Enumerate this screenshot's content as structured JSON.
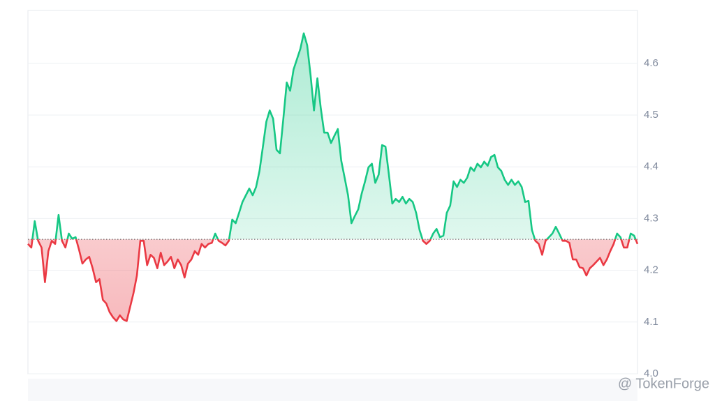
{
  "chart_data": {
    "type": "line",
    "watermark": "@ TokenForge",
    "baseline": 4.26,
    "up_color": "#16c784",
    "down_color": "#ea3943",
    "ylim": [
      4.0,
      4.7
    ],
    "yticks": [
      {
        "value": 4.0,
        "label": "4.0"
      },
      4.1,
      4.2,
      4.3,
      4.4,
      4.5,
      4.6
    ],
    "grid": true,
    "values": [
      4.251,
      4.244,
      4.295,
      4.257,
      4.244,
      4.177,
      4.237,
      4.257,
      4.251,
      4.307,
      4.257,
      4.244,
      4.271,
      4.261,
      4.264,
      4.24,
      4.213,
      4.221,
      4.226,
      4.204,
      4.177,
      4.183,
      4.143,
      4.136,
      4.119,
      4.109,
      4.102,
      4.113,
      4.105,
      4.102,
      4.129,
      4.156,
      4.19,
      4.257,
      4.257,
      4.21,
      4.23,
      4.224,
      4.204,
      4.234,
      4.21,
      4.217,
      4.226,
      4.204,
      4.221,
      4.21,
      4.186,
      4.213,
      4.221,
      4.237,
      4.23,
      4.251,
      4.244,
      4.251,
      4.253,
      4.271,
      4.257,
      4.253,
      4.248,
      4.257,
      4.298,
      4.291,
      4.311,
      4.332,
      4.345,
      4.358,
      4.345,
      4.361,
      4.392,
      4.439,
      4.487,
      4.509,
      4.493,
      4.433,
      4.426,
      4.493,
      4.563,
      4.547,
      4.588,
      4.608,
      4.628,
      4.658,
      4.635,
      4.577,
      4.509,
      4.571,
      4.513,
      4.466,
      4.466,
      4.446,
      4.46,
      4.473,
      4.412,
      4.379,
      4.345,
      4.291,
      4.305,
      4.318,
      4.348,
      4.372,
      4.399,
      4.406,
      4.369,
      4.385,
      4.442,
      4.439,
      4.385,
      4.329,
      4.338,
      4.332,
      4.342,
      4.329,
      4.338,
      4.332,
      4.311,
      4.278,
      4.257,
      4.251,
      4.257,
      4.271,
      4.28,
      4.264,
      4.267,
      4.311,
      4.325,
      4.372,
      4.361,
      4.375,
      4.369,
      4.379,
      4.399,
      4.392,
      4.406,
      4.399,
      4.41,
      4.402,
      4.419,
      4.423,
      4.399,
      4.392,
      4.375,
      4.365,
      4.375,
      4.365,
      4.372,
      4.361,
      4.332,
      4.334,
      4.278,
      4.257,
      4.251,
      4.23,
      4.257,
      4.264,
      4.271,
      4.284,
      4.271,
      4.257,
      4.257,
      4.253,
      4.221,
      4.221,
      4.206,
      4.204,
      4.19,
      4.204,
      4.21,
      4.217,
      4.224,
      4.21,
      4.221,
      4.237,
      4.251,
      4.271,
      4.264,
      4.244,
      4.244,
      4.271,
      4.267,
      4.251
    ]
  }
}
